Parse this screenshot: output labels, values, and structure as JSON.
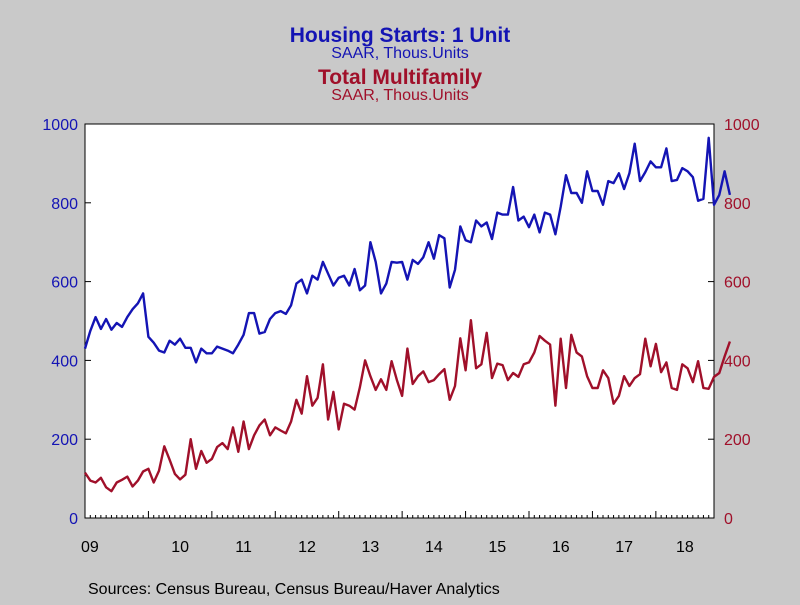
{
  "chart_data": {
    "type": "line",
    "titles": {
      "series1_title": "Housing Starts: 1 Unit",
      "series1_subtitle": "SAAR, Thous.Units",
      "series2_title": "Total Multifamily",
      "series2_subtitle": "SAAR, Thous.Units"
    },
    "source": "Sources:  Census Bureau, Census Bureau/Haver Analytics",
    "x_start": "2009-01",
    "x_frequency": "monthly",
    "xlim": [
      "2009-01",
      "2018-12"
    ],
    "x_tick_labels": [
      "09",
      "10",
      "11",
      "12",
      "13",
      "14",
      "15",
      "16",
      "17",
      "18"
    ],
    "y_left": {
      "lim": [
        0,
        1000
      ],
      "ticks": [
        "0",
        "200",
        "400",
        "600",
        "800",
        "1000"
      ],
      "color": "#1414b4"
    },
    "y_right": {
      "lim": [
        0,
        1000
      ],
      "ticks": [
        "0",
        "200",
        "400",
        "600",
        "800",
        "1000"
      ],
      "color": "#a0102a"
    },
    "grid": false,
    "series": [
      {
        "color": "#1414b4",
        "axis": "left",
        "values": [
          430,
          475,
          510,
          480,
          505,
          478,
          495,
          485,
          510,
          530,
          545,
          570,
          460,
          445,
          425,
          420,
          450,
          440,
          455,
          432,
          432,
          395,
          430,
          418,
          418,
          435,
          430,
          425,
          418,
          440,
          465,
          520,
          520,
          468,
          472,
          505,
          520,
          525,
          518,
          540,
          595,
          605,
          570,
          615,
          605,
          650,
          620,
          590,
          610,
          615,
          590,
          632,
          578,
          590,
          700,
          650,
          570,
          595,
          650,
          648,
          650,
          605,
          655,
          645,
          662,
          700,
          658,
          718,
          710,
          585,
          630,
          740,
          705,
          700,
          755,
          740,
          750,
          708,
          775,
          770,
          770,
          840,
          755,
          765,
          738,
          770,
          725,
          775,
          770,
          720,
          790,
          870,
          825,
          825,
          800,
          880,
          830,
          830,
          795,
          855,
          850,
          875,
          835,
          875,
          950,
          855,
          878,
          905,
          890,
          890,
          938,
          855,
          858,
          888,
          880,
          865,
          805,
          810,
          965,
          795,
          820,
          880,
          820
        ]
      },
      {
        "color": "#a0102a",
        "axis": "right",
        "values": [
          115,
          95,
          90,
          102,
          78,
          68,
          90,
          97,
          105,
          80,
          95,
          118,
          125,
          90,
          120,
          182,
          148,
          112,
          98,
          110,
          200,
          125,
          170,
          140,
          150,
          180,
          190,
          175,
          230,
          168,
          245,
          175,
          210,
          235,
          250,
          210,
          230,
          222,
          215,
          245,
          300,
          265,
          360,
          285,
          305,
          390,
          250,
          320,
          225,
          290,
          285,
          275,
          332,
          400,
          360,
          325,
          352,
          325,
          398,
          350,
          310,
          430,
          340,
          360,
          372,
          345,
          350,
          365,
          378,
          300,
          335,
          456,
          375,
          502,
          380,
          390,
          470,
          355,
          392,
          388,
          350,
          368,
          358,
          390,
          395,
          420,
          462,
          450,
          440,
          285,
          455,
          330,
          465,
          420,
          410,
          360,
          330,
          330,
          375,
          355,
          290,
          310,
          360,
          335,
          355,
          365,
          455,
          385,
          442,
          370,
          395,
          330,
          325,
          390,
          380,
          345,
          398,
          330,
          328,
          358,
          368,
          410,
          448
        ]
      }
    ]
  }
}
